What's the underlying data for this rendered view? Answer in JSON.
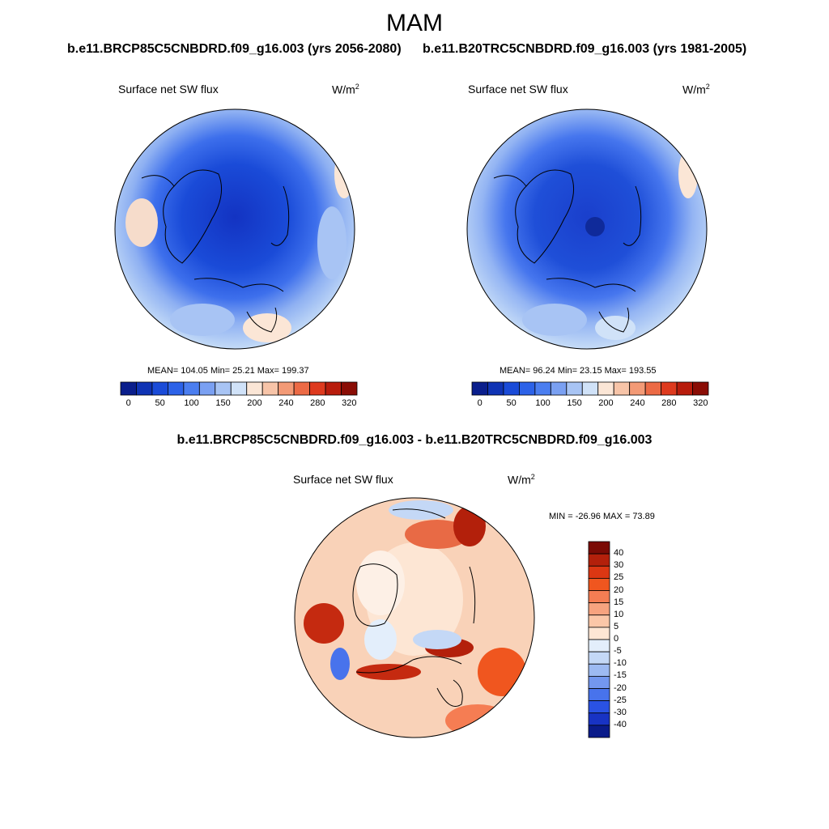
{
  "season": "MAM",
  "left_case_title": "b.e11.BRCP85C5CNBDRD.f09_g16.003 (yrs 2056-2080)",
  "right_case_title": "b.e11.B20TRC5CNBDRD.f09_g16.003 (yrs 1981-2005)",
  "diff_title": "b.e11.BRCP85C5CNBDRD.f09_g16.003 - b.e11.B20TRC5CNBDRD.f09_g16.003",
  "panels": [
    {
      "variable": "Surface net SW flux",
      "units_base": "W/m",
      "units_exp": "2",
      "stats": "MEAN= 104.05  Min=  25.21  Max= 199.37"
    },
    {
      "variable": "Surface net SW flux",
      "units_base": "W/m",
      "units_exp": "2",
      "stats": "MEAN=  96.24  Min=  23.15  Max= 193.55"
    },
    {
      "variable": "Surface net SW flux",
      "units_base": "W/m",
      "units_exp": "2",
      "stats": "MIN = -26.96 MAX =  73.89"
    }
  ],
  "main_colorbar": {
    "colors": [
      "#0a1e8c",
      "#0f33b4",
      "#1a4bd8",
      "#2c62e8",
      "#4b7ef0",
      "#7aa0f2",
      "#a8c4f4",
      "#d0e2f8",
      "#fbe6d6",
      "#f7c4a8",
      "#f39a76",
      "#ec6a45",
      "#de3a1e",
      "#b81c0c",
      "#8a0d05"
    ],
    "labels": [
      "0",
      "50",
      "100",
      "150",
      "200",
      "240",
      "280",
      "320"
    ]
  },
  "diff_colorbar": {
    "colors": [
      "#7b0b05",
      "#b3200b",
      "#dc3713",
      "#f0561f",
      "#f57d53",
      "#f7a37f",
      "#fbc7a8",
      "#fde6d4",
      "#e3eefb",
      "#c4d8f6",
      "#9dbaf2",
      "#7397ef",
      "#4873ec",
      "#2a52e4",
      "#1833c4",
      "#0a1b8a"
    ],
    "labels": [
      "40",
      "30",
      "25",
      "20",
      "15",
      "10",
      "5",
      "0",
      "-5",
      "-10",
      "-15",
      "-20",
      "-25",
      "-30",
      "-40"
    ]
  }
}
